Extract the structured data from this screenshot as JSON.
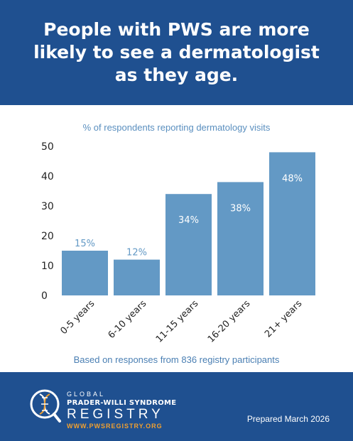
{
  "header": {
    "title": "People with PWS are more likely to see a dermatologist as they age."
  },
  "chart_data": {
    "type": "bar",
    "title": "People with PWS are more likely to see a dermatologist as they age.",
    "subtitle": "% of respondents reporting dermatology visits",
    "categories": [
      "0-5 years",
      "6-10 years",
      "11-15 years",
      "16-20 years",
      "21+ years"
    ],
    "values": [
      15,
      12,
      34,
      38,
      48
    ],
    "data_labels": [
      "15%",
      "12%",
      "34%",
      "38%",
      "48%"
    ],
    "yticks": [
      0,
      10,
      20,
      30,
      40,
      50
    ],
    "ylim": [
      0,
      50
    ],
    "xlabel": "",
    "ylabel": "",
    "grid": false,
    "bar_color": "#6399c5",
    "footnote": "Based on responses from 836 registry participants"
  },
  "footer": {
    "logo_line1": "GLOBAL",
    "logo_line2": "PRADER-WILLI SYNDROME",
    "logo_line3": "REGISTRY",
    "logo_line4": "WWW.PWSREGISTRY.ORG",
    "prepared": "Prepared March 2026"
  },
  "colors": {
    "brand_blue": "#1f5090",
    "accent_orange": "#f0a030",
    "bar": "#6399c5",
    "label_outside": "#6399c5"
  }
}
